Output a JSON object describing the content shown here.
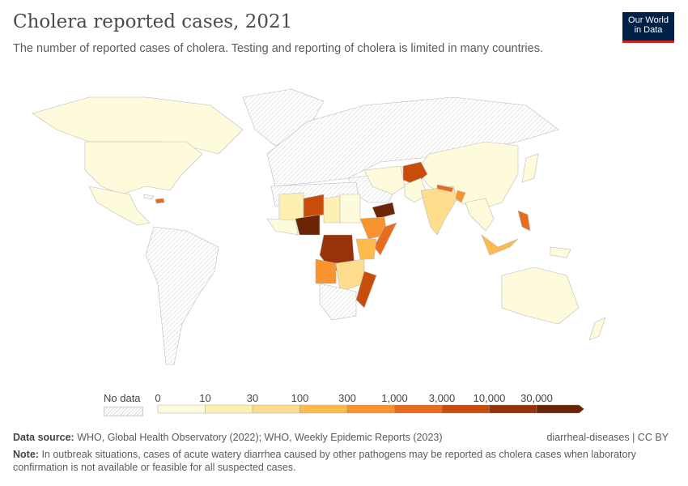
{
  "title": "Cholera reported cases, 2021",
  "subtitle": "The number of reported cases of cholera. Testing and reporting of cholera is limited in many countries.",
  "logo": {
    "line1": "Our World",
    "line2": "in Data"
  },
  "legend": {
    "no_data_label": "No data",
    "bins": [
      "0",
      "10",
      "30",
      "100",
      "300",
      "1,000",
      "3,000",
      "10,000",
      "30,000"
    ],
    "colors": [
      "#fefbdc",
      "#fdf0b2",
      "#fddd8c",
      "#fdbb4b",
      "#f8932f",
      "#e86c1d",
      "#c84d0b",
      "#983208",
      "#6b2406"
    ],
    "no_data_color": "#e6e6e6"
  },
  "map_colors": {
    "land_low": "#fefbdc",
    "nodata": "#e6e6e6",
    "border": "#bbbbbb"
  },
  "footer": {
    "source_label": "Data source:",
    "source": "WHO, Global Health Observatory (2022); WHO, Weekly Epidemic Reports (2023)",
    "slug": "diarrheal-diseases | CC BY",
    "note_label": "Note:",
    "note": "In outbreak situations, cases of acute watery diarrhea caused by other pathogens may be reported as cholera cases when laboratory confirmation is not available or feasible for all suspected cases."
  }
}
